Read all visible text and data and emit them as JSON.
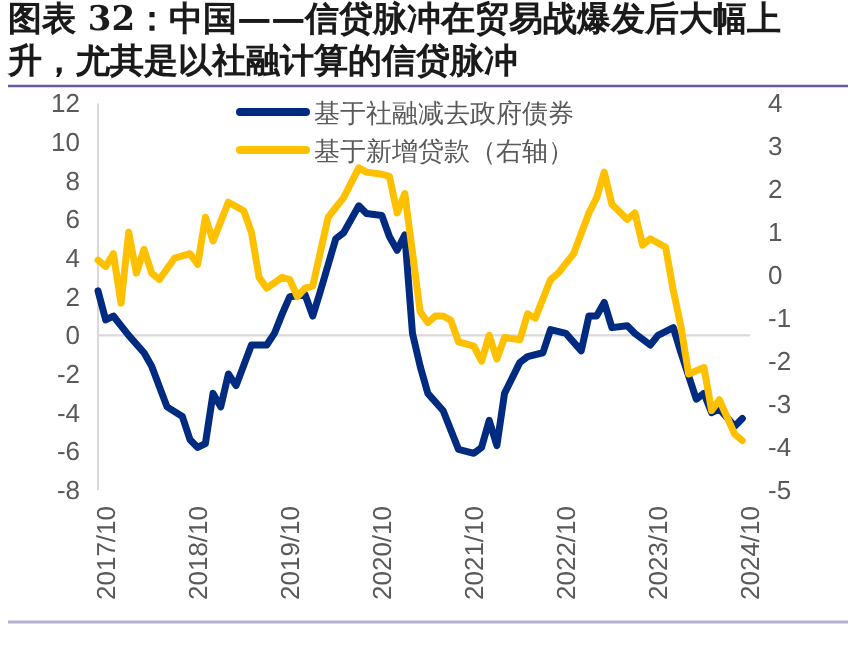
{
  "chart_data": {
    "type": "line",
    "title": "图表 32：中国——信贷脉冲在贸易战爆发后大幅上升，尤其是以社融计算的信贷脉冲",
    "xlim": [
      "2017-09",
      "2024-10"
    ],
    "xticks": [
      {
        "value": "2017-10",
        "label": "2017/10"
      },
      {
        "value": "2018-10",
        "label": "2018/10"
      },
      {
        "value": "2019-10",
        "label": "2019/10"
      },
      {
        "value": "2020-10",
        "label": "2020/10"
      },
      {
        "value": "2021-10",
        "label": "2021/10"
      },
      {
        "value": "2022-10",
        "label": "2022/10"
      },
      {
        "value": "2023-10",
        "label": "2023/10"
      },
      {
        "value": "2024-10",
        "label": "2024/10"
      }
    ],
    "ylim": [
      -8,
      12
    ],
    "yticks": [
      -8,
      -6,
      -4,
      -2,
      0,
      2,
      4,
      6,
      8,
      10,
      12
    ],
    "y2lim": [
      -5,
      4
    ],
    "y2ticks": [
      -5,
      -4,
      -3,
      -2,
      -1,
      0,
      1,
      2,
      3,
      4
    ],
    "legend": "top",
    "ref_lines": [
      {
        "axis": "y",
        "value": 0,
        "color": "#d9d9d9"
      }
    ],
    "series": [
      {
        "name": "基于社融减去政府债券",
        "color": "#002b80",
        "x": [
          "2017-09",
          "2017-10",
          "2017-11",
          "2018-01",
          "2018-03",
          "2018-04",
          "2018-06",
          "2018-08",
          "2018-09",
          "2018-10",
          "2018-11",
          "2018-12",
          "2019-01",
          "2019-02",
          "2019-03",
          "2019-05",
          "2019-07",
          "2019-08",
          "2019-09",
          "2019-10",
          "2019-12",
          "2020-01",
          "2020-02",
          "2020-04",
          "2020-05",
          "2020-07",
          "2020-08",
          "2020-10",
          "2020-11",
          "2020-12",
          "2021-01",
          "2021-02",
          "2021-03",
          "2021-04",
          "2021-06",
          "2021-08",
          "2021-10",
          "2021-11",
          "2021-12",
          "2022-01",
          "2022-02",
          "2022-04",
          "2022-05",
          "2022-07",
          "2022-08",
          "2022-10",
          "2022-12",
          "2023-01",
          "2023-02",
          "2023-03",
          "2023-04",
          "2023-06",
          "2023-07",
          "2023-09",
          "2023-10",
          "2023-12",
          "2024-01",
          "2024-03",
          "2024-04",
          "2024-05",
          "2024-06",
          "2024-08",
          "2024-09"
        ],
        "values": [
          2.3,
          0.8,
          1.0,
          0.0,
          -0.9,
          -1.6,
          -3.7,
          -4.2,
          -5.4,
          -5.8,
          -5.6,
          -3.0,
          -3.7,
          -2.0,
          -2.6,
          -0.5,
          -0.5,
          0.1,
          1.1,
          2.0,
          2.1,
          1.0,
          2.3,
          5.0,
          5.3,
          6.7,
          6.3,
          6.2,
          5.1,
          4.4,
          5.2,
          0.1,
          -1.6,
          -3.0,
          -3.9,
          -5.9,
          -6.1,
          -5.8,
          -4.4,
          -5.7,
          -3.0,
          -1.4,
          -1.1,
          -0.9,
          0.3,
          0.1,
          -0.8,
          1.0,
          1.0,
          1.7,
          0.4,
          0.5,
          0.1,
          -0.5,
          0.0,
          0.4,
          -0.9,
          -3.3,
          -3.0,
          -4.0,
          -3.8,
          -4.7,
          -4.3
        ]
      },
      {
        "name": "基于新增贷款（右轴）",
        "color": "#ffc000",
        "axis": "y2",
        "x": [
          "2017-09",
          "2017-10",
          "2017-11",
          "2017-12",
          "2018-01",
          "2018-02",
          "2018-03",
          "2018-04",
          "2018-05",
          "2018-07",
          "2018-09",
          "2018-10",
          "2018-11",
          "2018-12",
          "2019-02",
          "2019-04",
          "2019-05",
          "2019-06",
          "2019-07",
          "2019-09",
          "2019-10",
          "2019-11",
          "2019-12",
          "2020-01",
          "2020-03",
          "2020-05",
          "2020-07",
          "2020-08",
          "2020-10",
          "2020-11",
          "2020-12",
          "2021-01",
          "2021-03",
          "2021-04",
          "2021-05",
          "2021-06",
          "2021-07",
          "2021-08",
          "2021-10",
          "2021-11",
          "2021-12",
          "2022-01",
          "2022-02",
          "2022-04",
          "2022-05",
          "2022-06",
          "2022-08",
          "2022-09",
          "2022-11",
          "2023-01",
          "2023-02",
          "2023-03",
          "2023-04",
          "2023-06",
          "2023-07",
          "2023-08",
          "2023-09",
          "2023-11",
          "2023-12",
          "2024-01",
          "2024-02",
          "2024-04",
          "2024-05",
          "2024-06",
          "2024-08",
          "2024-09"
        ],
        "values": [
          0.35,
          0.2,
          0.5,
          -0.65,
          1.0,
          0.05,
          0.6,
          0.05,
          -0.1,
          0.4,
          0.5,
          0.25,
          1.35,
          0.8,
          1.7,
          1.5,
          1.0,
          -0.05,
          -0.3,
          -0.05,
          -0.1,
          -0.5,
          -0.3,
          -0.25,
          1.35,
          1.8,
          2.5,
          2.4,
          2.35,
          2.3,
          1.45,
          1.9,
          -0.85,
          -1.1,
          -0.95,
          -0.95,
          -1.05,
          -1.55,
          -1.65,
          -2.0,
          -1.4,
          -1.95,
          -1.45,
          -1.5,
          -0.9,
          -1.0,
          -0.1,
          0.05,
          0.5,
          1.45,
          1.8,
          2.4,
          1.65,
          1.3,
          1.45,
          0.7,
          0.85,
          0.65,
          -0.35,
          -1.2,
          -2.3,
          -2.15,
          -3.15,
          -2.9,
          -3.7,
          -3.85
        ]
      }
    ]
  }
}
